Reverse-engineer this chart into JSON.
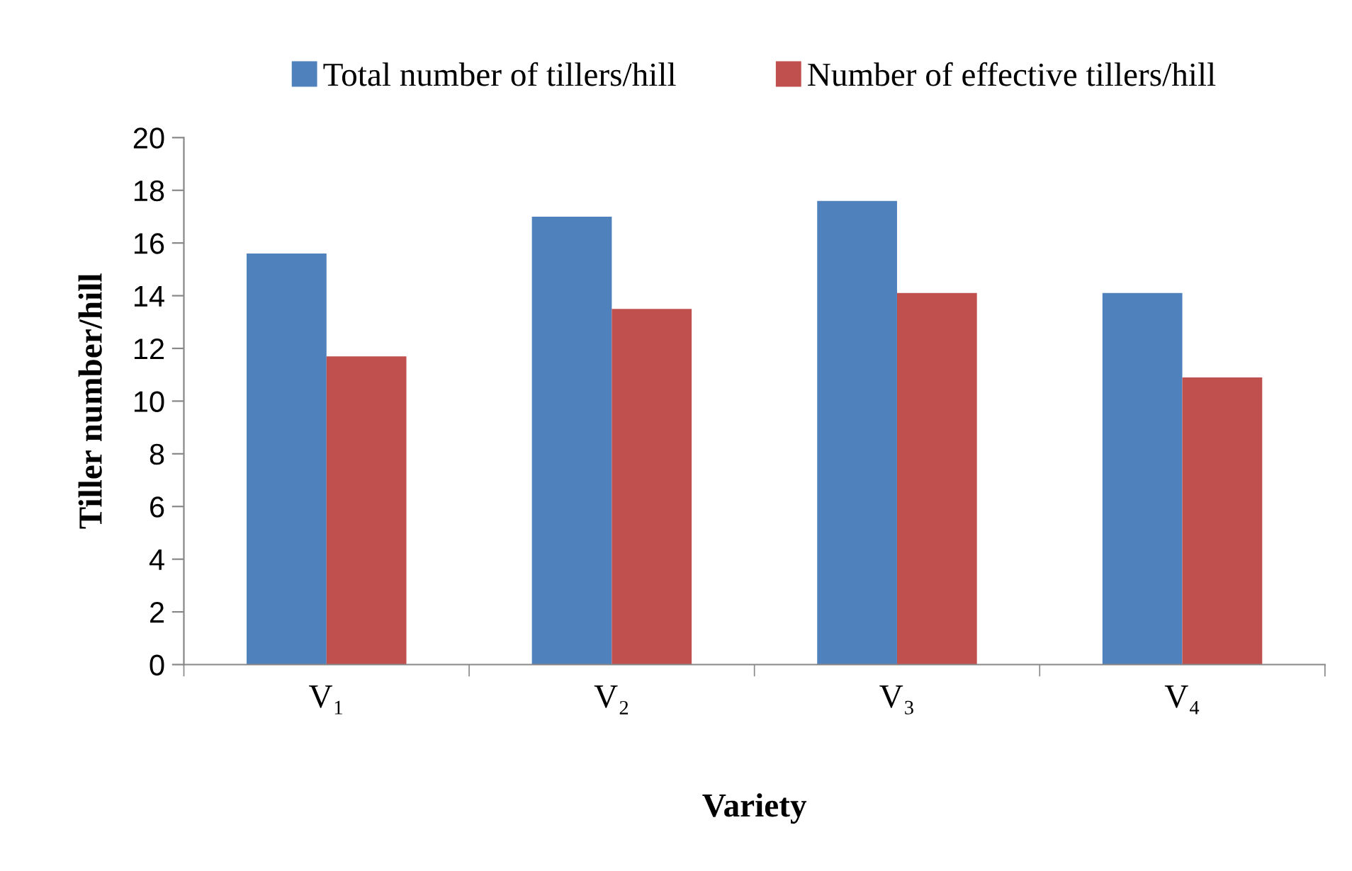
{
  "chart_data": {
    "type": "bar",
    "categories": [
      "V₁",
      "V₂",
      "V₃",
      "V₄"
    ],
    "series": [
      {
        "name": "Total number of tillers/hill",
        "color": "#4f81bd",
        "values": [
          15.6,
          17.0,
          17.6,
          14.1
        ]
      },
      {
        "name": "Number of effective tillers/hill",
        "color": "#c0504d",
        "values": [
          11.7,
          13.5,
          14.1,
          10.9
        ]
      }
    ],
    "xlabel": "Variety",
    "ylabel": "Tiller number/hill",
    "ylim": [
      0,
      20
    ],
    "yticks": [
      0,
      2,
      4,
      6,
      8,
      10,
      12,
      14,
      16,
      18,
      20
    ],
    "grid": false,
    "legend": "top"
  }
}
